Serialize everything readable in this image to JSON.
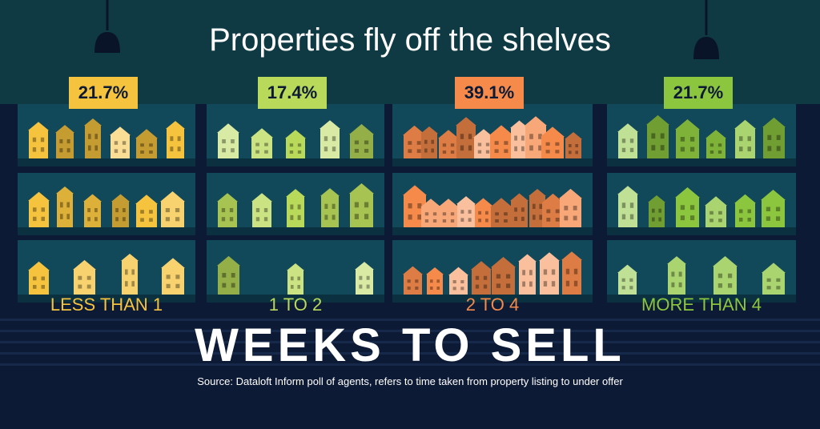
{
  "title": "Properties fly off the shelves",
  "footer_title": "WEEKS TO SELL",
  "source": "Source: Dataloft Inform poll of agents, refers to time taken from property listing to under offer",
  "colors": {
    "background": "#0d1a35",
    "header": "#0f3a44",
    "shelf": "#11485a",
    "shelf_edge": "#0b3140",
    "less_than_1": "#f6c33f",
    "1_to_2": "#b9d95a",
    "2_to_4": "#f58a4b",
    "more_than_4": "#8cc63f"
  },
  "chart_data": {
    "type": "bar",
    "title": "Properties fly off the shelves",
    "xlabel": "WEEKS TO SELL",
    "categories": [
      "LESS THAN 1",
      "1 TO 2",
      "2 TO 4",
      "MORE THAN 4"
    ],
    "values": [
      21.7,
      17.4,
      39.1,
      21.7
    ],
    "value_labels": [
      "21.7%",
      "17.4%",
      "39.1%",
      "21.7%"
    ],
    "unit": "%",
    "encoding": "number of houses on shelves"
  }
}
